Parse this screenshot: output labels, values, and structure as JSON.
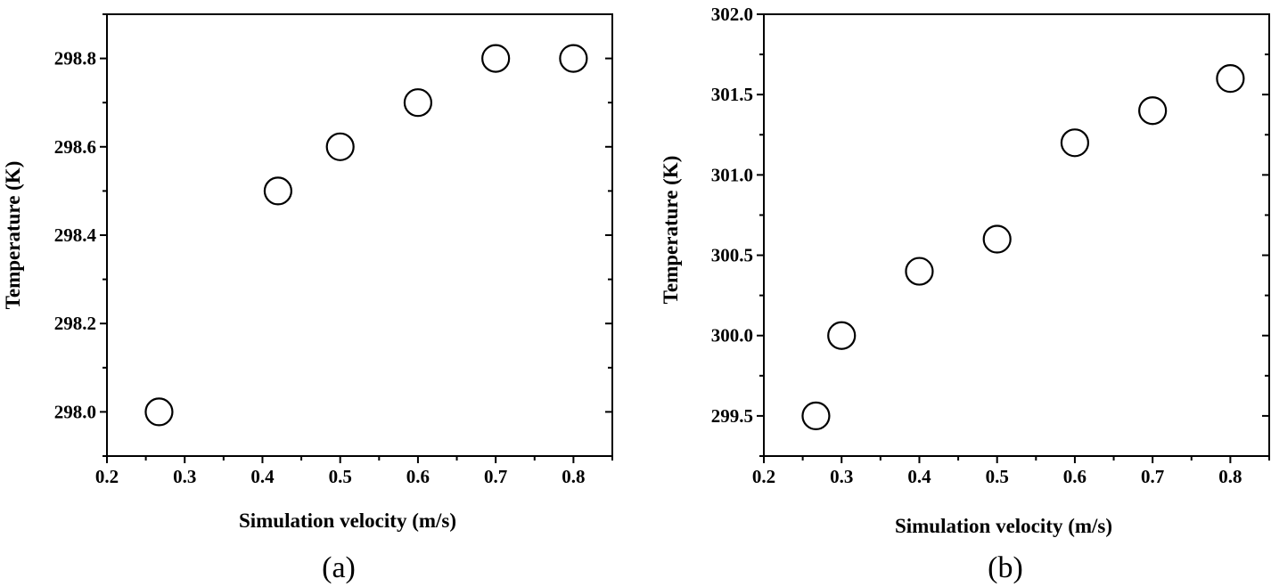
{
  "chart_data": [
    {
      "type": "scatter",
      "panel": "a",
      "caption": "(a)",
      "xlabel": "Simulation velocity (m/s)",
      "ylabel": "Temperature (K)",
      "xlim": [
        0.2,
        0.85
      ],
      "ylim": [
        297.9,
        298.9
      ],
      "xticks": [
        0.2,
        0.3,
        0.4,
        0.5,
        0.6,
        0.7,
        0.8
      ],
      "xtick_labels": [
        "0.2",
        "0.3",
        "0.4",
        "0.5",
        "0.6",
        "0.7",
        "0.8"
      ],
      "yticks": [
        298.0,
        298.2,
        298.4,
        298.6,
        298.8
      ],
      "ytick_labels": [
        "298.0",
        "298.2",
        "298.4",
        "298.6",
        "298.8"
      ],
      "x": [
        0.267,
        0.42,
        0.5,
        0.6,
        0.7,
        0.8
      ],
      "y": [
        298.0,
        298.5,
        298.6,
        298.7,
        298.8,
        298.8
      ],
      "marker": "open-circle",
      "grid": false
    },
    {
      "type": "scatter",
      "panel": "b",
      "caption": "(b)",
      "xlabel": "Simulation velocity (m/s)",
      "ylabel": "Temperature (K)",
      "xlim": [
        0.2,
        0.85
      ],
      "ylim": [
        299.25,
        302.0
      ],
      "xticks": [
        0.2,
        0.3,
        0.4,
        0.5,
        0.6,
        0.7,
        0.8
      ],
      "xtick_labels": [
        "0.2",
        "0.3",
        "0.4",
        "0.5",
        "0.6",
        "0.7",
        "0.8"
      ],
      "yticks": [
        299.5,
        300.0,
        300.5,
        301.0,
        301.5,
        302.0
      ],
      "ytick_labels": [
        "299.5",
        "300.0",
        "300.5",
        "301.0",
        "301.5",
        "302.0"
      ],
      "x": [
        0.267,
        0.3,
        0.4,
        0.5,
        0.6,
        0.7,
        0.8
      ],
      "y": [
        299.5,
        300.0,
        300.4,
        300.6,
        301.2,
        301.4,
        301.6
      ],
      "marker": "open-circle",
      "grid": false
    }
  ]
}
